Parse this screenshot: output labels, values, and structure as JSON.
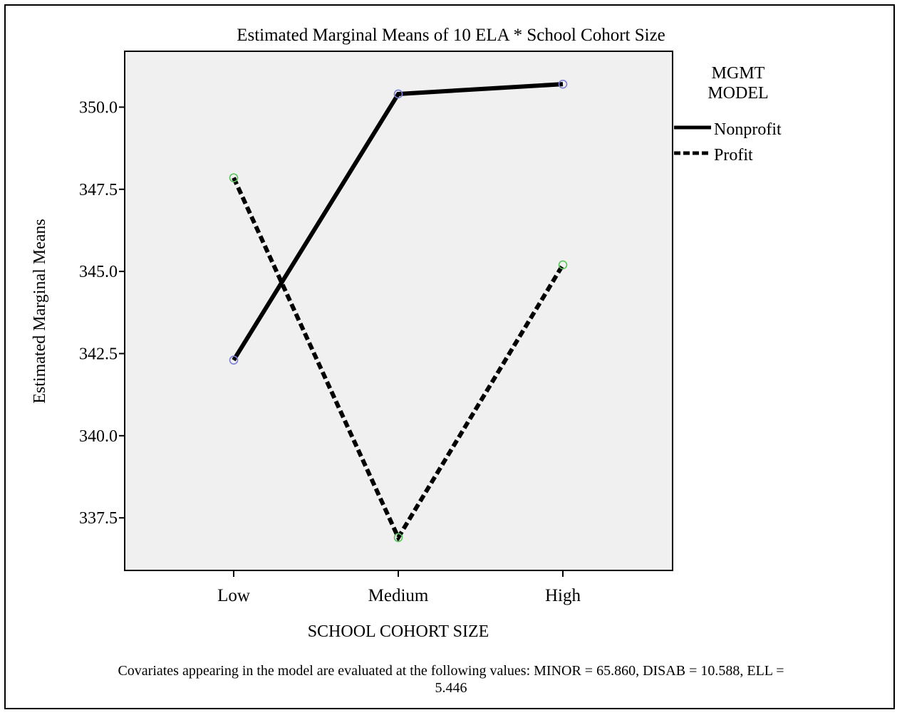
{
  "chart_data": {
    "type": "line",
    "title": "Estimated Marginal Means of 10 ELA * School Cohort Size",
    "xlabel": "SCHOOL COHORT SIZE",
    "ylabel": "Estimated Marginal Means",
    "categories": [
      "Low",
      "Medium",
      "High"
    ],
    "yticks": [
      "337.5",
      "340.0",
      "342.5",
      "345.0",
      "347.5",
      "350.0"
    ],
    "ytick_values": [
      337.5,
      340.0,
      342.5,
      345.0,
      347.5,
      350.0
    ],
    "ylim": [
      335.9,
      351.7
    ],
    "grid": false,
    "plot_background": "#f0f0f0",
    "legend_title": "MGMT\nMODEL",
    "legend_title_lines": [
      "MGMT",
      "MODEL"
    ],
    "legend_position": "right",
    "series": [
      {
        "name": "Nonprofit",
        "values": [
          342.3,
          350.4,
          350.7
        ],
        "line_style": "solid",
        "color": "#000000",
        "marker_color": "#7b7fd4"
      },
      {
        "name": "Profit",
        "values": [
          347.85,
          336.9,
          345.2
        ],
        "line_style": "dashed",
        "color": "#000000",
        "marker_color": "#5cc45c"
      }
    ]
  },
  "footnote": {
    "line1": "Covariates appearing in the model are evaluated at the following values: MINOR = 65.860, DISAB = 10.588, ELL =",
    "line2": "5.446"
  }
}
